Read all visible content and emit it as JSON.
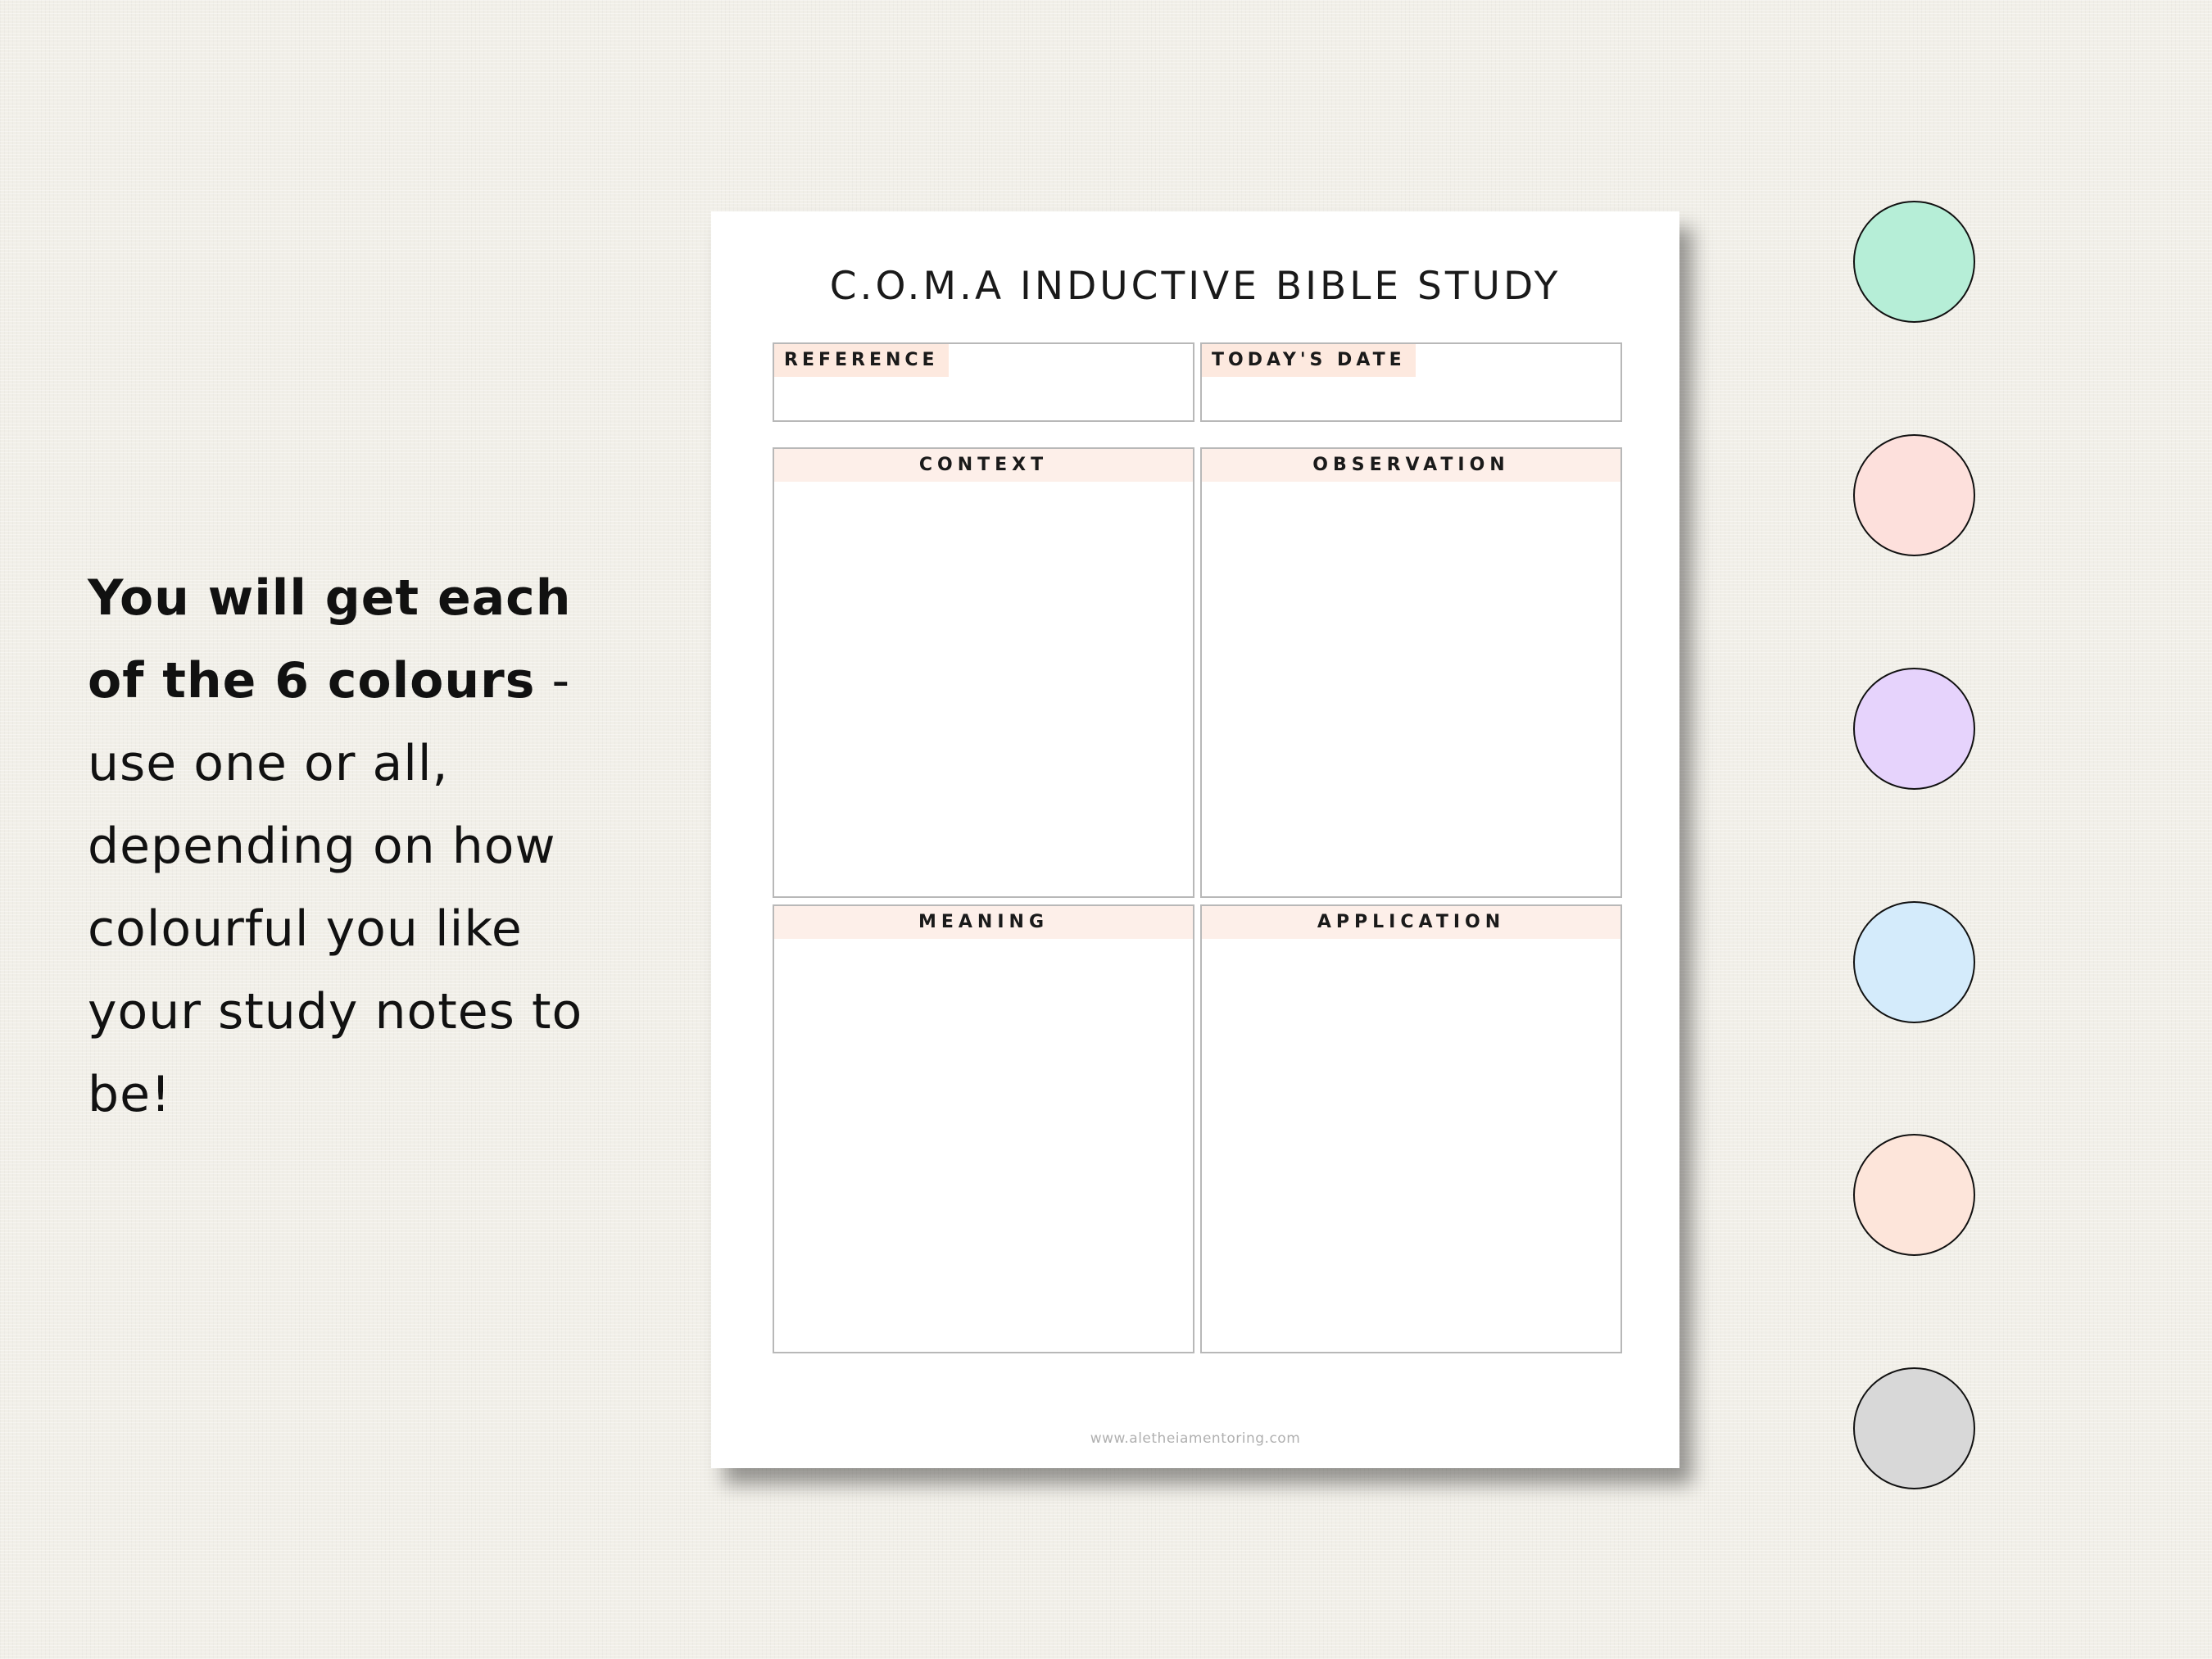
{
  "promo": {
    "bold_text": "You will get each of the 6 colours",
    "rest_text": " - use one or all, depending on how colourful you like your study notes to be!"
  },
  "sheet": {
    "title": "C.O.M.A INDUCTIVE BIBLE STUDY",
    "reference_label": "REFERENCE",
    "date_label": "TODAY'S DATE",
    "sections": {
      "context": "CONTEXT",
      "observation": "OBSERVATION",
      "meaning": "MEANING",
      "application": "APPLICATION"
    },
    "footer": "www.aletheiamentoring.com",
    "accent_color": "#fde9df"
  },
  "swatches": [
    {
      "name": "mint",
      "color": "#b6eed7"
    },
    {
      "name": "pink",
      "color": "#fde0dc"
    },
    {
      "name": "lavender",
      "color": "#e6d3fc"
    },
    {
      "name": "sky",
      "color": "#d4ebfb"
    },
    {
      "name": "peach",
      "color": "#fde5da"
    },
    {
      "name": "grey",
      "color": "#d8d8d8"
    }
  ]
}
